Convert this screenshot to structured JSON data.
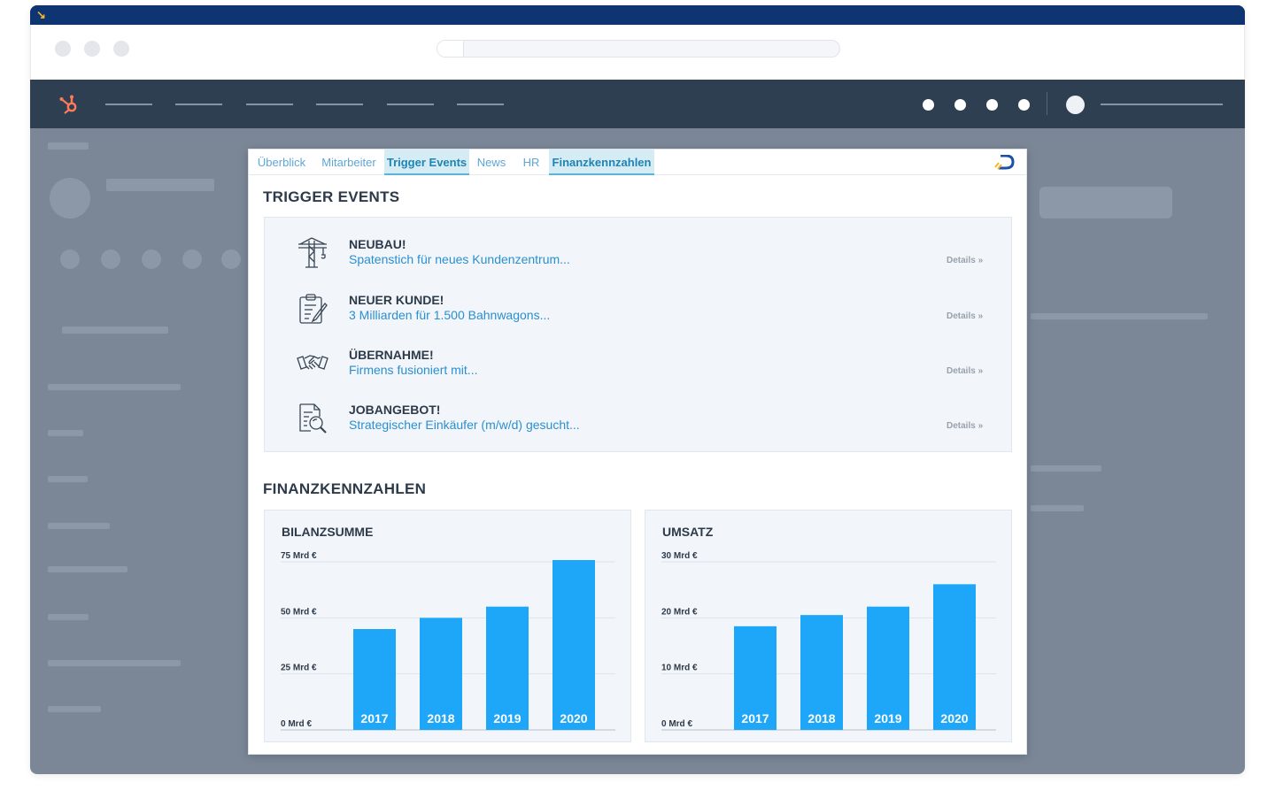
{
  "browser": {
    "url": ""
  },
  "panel": {
    "tabs": [
      {
        "label": "Überblick",
        "active": false
      },
      {
        "label": "Mitarbeiter",
        "active": false
      },
      {
        "label": "Trigger Events",
        "active": true
      },
      {
        "label": "News",
        "active": false
      },
      {
        "label": "HR",
        "active": false
      },
      {
        "label": "Finanzkennzahlen",
        "active": true
      }
    ],
    "trigger_heading": "TRIGGER EVENTS",
    "events": [
      {
        "title": "NEUBAU!",
        "subtitle": "Spatenstich für neues Kundenzentrum...",
        "details": "Details »",
        "icon": "crane-icon"
      },
      {
        "title": "NEUER KUNDE!",
        "subtitle": "3 Milliarden für 1.500 Bahnwagons...",
        "details": "Details »",
        "icon": "clipboard-icon"
      },
      {
        "title": "ÜBERNAHME!",
        "subtitle": "Firmens fusioniert mit...",
        "details": "Details »",
        "icon": "handshake-icon"
      },
      {
        "title": "JOBANGEBOT!",
        "subtitle": "Strategischer Einkäufer (m/w/d) gesucht...",
        "details": "Details »",
        "icon": "document-search-icon"
      }
    ],
    "finance_heading": "FINANZKENNZAHLEN"
  },
  "colors": {
    "bar": "#1ea7f8",
    "nav": "#2e3f51",
    "accent": "#0e3472",
    "hubspot": "#ff7a59"
  },
  "chart_data": [
    {
      "type": "bar",
      "title": "BILANZSUMME",
      "categories": [
        "2017",
        "2018",
        "2019",
        "2020"
      ],
      "values": [
        45,
        50,
        55,
        78
      ],
      "ylim": [
        0,
        75
      ],
      "yticks": [
        0,
        25,
        50,
        75
      ],
      "yticklabels": [
        "0 Mrd €",
        "25 Mrd €",
        "50 Mrd €",
        "75 Mrd €"
      ],
      "grid": true
    },
    {
      "type": "bar",
      "title": "UMSATZ",
      "categories": [
        "2017",
        "2018",
        "2019",
        "2020"
      ],
      "values": [
        18.5,
        20.5,
        22,
        26
      ],
      "ylim": [
        0,
        30
      ],
      "yticks": [
        0,
        10,
        20,
        30
      ],
      "yticklabels": [
        "0 Mrd €",
        "10 Mrd €",
        "20 Mrd €",
        "30 Mrd €"
      ],
      "grid": true
    }
  ]
}
